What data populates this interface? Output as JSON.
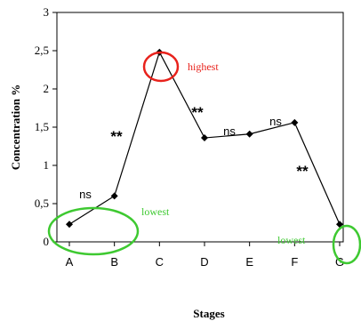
{
  "chart_data": {
    "type": "line",
    "categories": [
      "A",
      "B",
      "C",
      "D",
      "E",
      "F",
      "G"
    ],
    "values": [
      0.23,
      0.6,
      2.48,
      1.36,
      1.41,
      1.56,
      0.23
    ],
    "xlabel": "Stages",
    "ylabel": "Concentration %",
    "ylim": [
      0,
      3
    ],
    "yticks": [
      {
        "value": 0,
        "label": "0"
      },
      {
        "value": 0.5,
        "label": "0,5"
      },
      {
        "value": 1,
        "label": "1"
      },
      {
        "value": 1.5,
        "label": "1,5"
      },
      {
        "value": 2,
        "label": "2"
      },
      {
        "value": 2.5,
        "label": "2,5"
      },
      {
        "value": 3,
        "label": "3"
      }
    ],
    "grid": false,
    "legend": "none",
    "annotations": {
      "significance": [
        "ns",
        "**",
        "**",
        "ns",
        "ns",
        "**"
      ],
      "notes": [
        {
          "text": "highest",
          "color": "#e8221c"
        },
        {
          "text": "lowest",
          "color": "#3ec931"
        },
        {
          "text": "lowest",
          "color": "#3ec931"
        }
      ]
    }
  },
  "colors": {
    "line": "#000000",
    "highest": "#e8221c",
    "lowest": "#3ec931"
  }
}
